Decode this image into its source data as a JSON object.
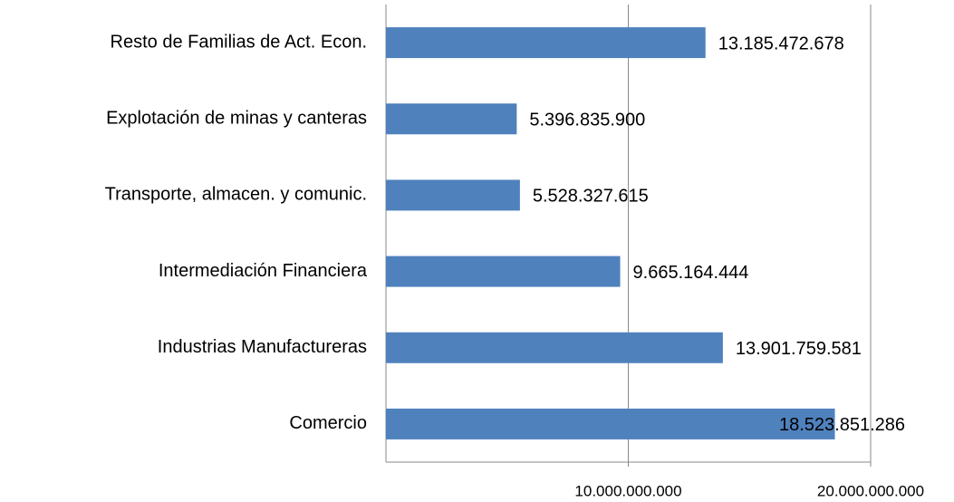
{
  "chart_data": {
    "type": "bar",
    "orientation": "horizontal",
    "categories": [
      "Resto de Familias de Act. Econ.",
      "Explotación de minas y canteras",
      "Transporte, almacen. y comunic.",
      "Intermediación Financiera",
      "Industrias Manufactureras",
      "Comercio"
    ],
    "values": [
      13185472678,
      5396835900,
      5528327615,
      9665164444,
      13901759581,
      18523851286
    ],
    "value_labels": [
      "13.185.472.678",
      "5.396.835.900",
      "5.528.327.615",
      "9.665.164.444",
      "13.901.759.581",
      "18.523.851.286"
    ],
    "color": "#4f81bd",
    "xlim": [
      0,
      20000000000
    ],
    "xticks": [
      {
        "value": 10000000000,
        "label": "10.000.000.000"
      },
      {
        "value": 20000000000,
        "label": "20.000.000.000"
      }
    ],
    "grid": true
  }
}
